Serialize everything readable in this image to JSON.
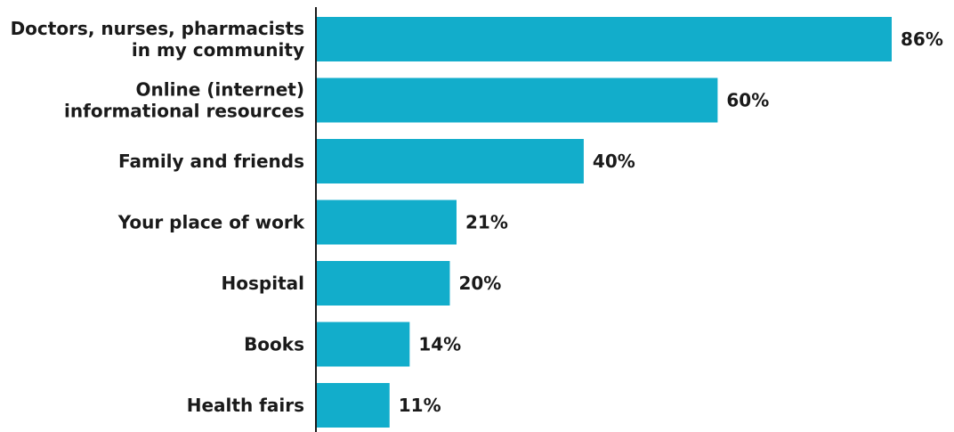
{
  "chart_data": {
    "type": "bar",
    "orientation": "horizontal",
    "categories": [
      "Doctors, nurses, pharmacists in my community",
      "Online (internet) informational resources",
      "Family and friends",
      "Your place of work",
      "Hospital",
      "Books",
      "Health fairs"
    ],
    "category_lines": [
      [
        "Doctors, nurses, pharmacists",
        "in my community"
      ],
      [
        "Online (internet)",
        "informational resources"
      ],
      [
        "Family and friends"
      ],
      [
        "Your place of work"
      ],
      [
        "Hospital"
      ],
      [
        "Books"
      ],
      [
        "Health fairs"
      ]
    ],
    "values": [
      86,
      60,
      40,
      21,
      20,
      14,
      11
    ],
    "value_labels": [
      "86%",
      "60%",
      "40%",
      "21%",
      "20%",
      "14%",
      "11%"
    ],
    "unit": "%",
    "xlim": [
      0,
      100
    ],
    "grid": false,
    "legend": "none",
    "colors": {
      "bar": "#12ADCB",
      "axis": "#1a1a1a",
      "text": "#1a1a1a"
    }
  }
}
